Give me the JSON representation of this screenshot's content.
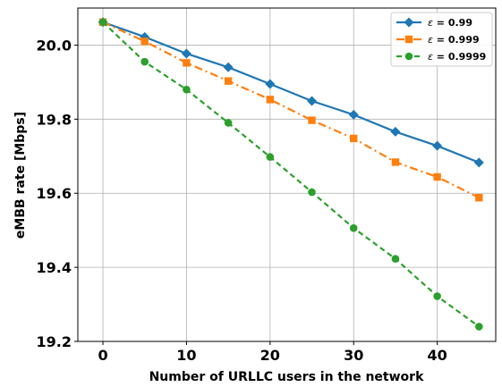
{
  "chart_data": {
    "type": "line",
    "xlabel": "Number of URLLC users in the network",
    "ylabel": "eMBB rate [Mbps]",
    "xlim": [
      -3,
      47
    ],
    "ylim": [
      19.2,
      20.1
    ],
    "xticks": [
      "0",
      "10",
      "20",
      "30",
      "40"
    ],
    "xtick_values": [
      0,
      10,
      20,
      30,
      40
    ],
    "yticks": [
      "19.2",
      "19.4",
      "19.6",
      "19.8",
      "20.0"
    ],
    "ytick_values": [
      19.2,
      19.4,
      19.6,
      19.8,
      20.0
    ],
    "grid": true,
    "legend_position": "top-right",
    "x": [
      0,
      5,
      10,
      15,
      20,
      25,
      30,
      35,
      40,
      45
    ],
    "series": [
      {
        "name_prefix": "ε",
        "name_value": " = 0.99",
        "color": "#1f77b4",
        "marker": "diamond",
        "linestyle": "solid",
        "values": [
          20.062,
          20.022,
          19.977,
          19.94,
          19.895,
          19.849,
          19.812,
          19.766,
          19.728,
          19.683
        ]
      },
      {
        "name_prefix": "ε",
        "name_value": " = 0.999",
        "color": "#ff7f0e",
        "marker": "square",
        "linestyle": "dashdot",
        "values": [
          20.062,
          20.01,
          19.952,
          19.903,
          19.853,
          19.797,
          19.748,
          19.684,
          19.644,
          19.588
        ]
      },
      {
        "name_prefix": "ε",
        "name_value": " = 0.9999",
        "color": "#2ca02c",
        "marker": "circle",
        "linestyle": "dashed",
        "values": [
          20.062,
          19.955,
          19.88,
          19.79,
          19.698,
          19.603,
          19.506,
          19.423,
          19.322,
          19.24
        ]
      }
    ]
  }
}
